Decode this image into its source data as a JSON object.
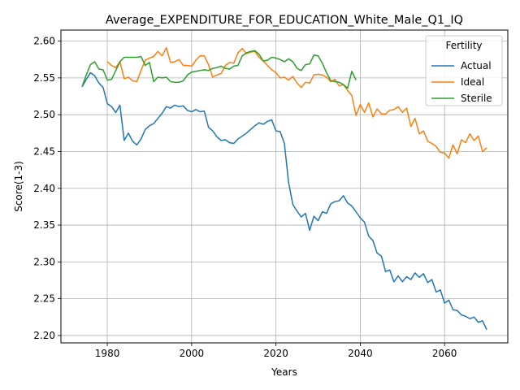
{
  "chart_data": {
    "type": "line",
    "title": "Average_EXPENDITURE_FOR_EDUCATION_White_Male_Q1_IQ",
    "xlabel": "Years",
    "ylabel": "Score(1-3)",
    "xlim": [
      1969,
      2075
    ],
    "ylim": [
      2.19,
      2.615
    ],
    "xticks": [
      1980,
      2000,
      2020,
      2040,
      2060
    ],
    "yticks": [
      2.2,
      2.25,
      2.3,
      2.35,
      2.4,
      2.45,
      2.5,
      2.55,
      2.6
    ],
    "xtick_labels": [
      "1980",
      "2000",
      "2020",
      "2040",
      "2060"
    ],
    "ytick_labels": [
      "2.20",
      "2.25",
      "2.30",
      "2.35",
      "2.40",
      "2.45",
      "2.50",
      "2.55",
      "2.60"
    ],
    "grid": true,
    "legend": {
      "title": "Fertility",
      "position": "top-right"
    },
    "series": [
      {
        "name": "Actual",
        "color": "#1f77b4",
        "points": [
          [
            1974,
            2.538
          ],
          [
            1975,
            2.548
          ],
          [
            1976,
            2.557
          ],
          [
            1977,
            2.553
          ],
          [
            1978,
            2.543
          ],
          [
            1979,
            2.537
          ],
          [
            1980,
            2.515
          ],
          [
            1981,
            2.511
          ],
          [
            1982,
            2.503
          ],
          [
            1983,
            2.513
          ],
          [
            1984,
            2.465
          ],
          [
            1985,
            2.475
          ],
          [
            1986,
            2.464
          ],
          [
            1987,
            2.459
          ],
          [
            1988,
            2.467
          ],
          [
            1989,
            2.48
          ],
          [
            1990,
            2.485
          ],
          [
            1991,
            2.488
          ],
          [
            1992,
            2.495
          ],
          [
            1993,
            2.502
          ],
          [
            1994,
            2.511
          ],
          [
            1995,
            2.509
          ],
          [
            1996,
            2.513
          ],
          [
            1997,
            2.511
          ],
          [
            1998,
            2.512
          ],
          [
            1999,
            2.506
          ],
          [
            2000,
            2.504
          ],
          [
            2001,
            2.507
          ],
          [
            2002,
            2.504
          ],
          [
            2003,
            2.505
          ],
          [
            2004,
            2.483
          ],
          [
            2005,
            2.478
          ],
          [
            2006,
            2.47
          ],
          [
            2007,
            2.465
          ],
          [
            2008,
            2.466
          ],
          [
            2009,
            2.462
          ],
          [
            2010,
            2.461
          ],
          [
            2011,
            2.467
          ],
          [
            2012,
            2.471
          ],
          [
            2013,
            2.475
          ],
          [
            2014,
            2.48
          ],
          [
            2015,
            2.485
          ],
          [
            2016,
            2.489
          ],
          [
            2017,
            2.487
          ],
          [
            2018,
            2.491
          ],
          [
            2019,
            2.493
          ],
          [
            2020,
            2.478
          ],
          [
            2021,
            2.477
          ],
          [
            2022,
            2.461
          ],
          [
            2023,
            2.408
          ],
          [
            2024,
            2.378
          ],
          [
            2025,
            2.369
          ],
          [
            2026,
            2.361
          ],
          [
            2027,
            2.366
          ],
          [
            2028,
            2.343
          ],
          [
            2029,
            2.362
          ],
          [
            2030,
            2.356
          ],
          [
            2031,
            2.368
          ],
          [
            2032,
            2.366
          ],
          [
            2033,
            2.379
          ],
          [
            2034,
            2.382
          ],
          [
            2035,
            2.383
          ],
          [
            2036,
            2.39
          ],
          [
            2037,
            2.38
          ],
          [
            2038,
            2.376
          ],
          [
            2039,
            2.368
          ],
          [
            2040,
            2.36
          ],
          [
            2041,
            2.354
          ],
          [
            2042,
            2.335
          ],
          [
            2043,
            2.329
          ],
          [
            2044,
            2.312
          ],
          [
            2045,
            2.308
          ],
          [
            2046,
            2.287
          ],
          [
            2047,
            2.289
          ],
          [
            2048,
            2.273
          ],
          [
            2049,
            2.281
          ],
          [
            2050,
            2.273
          ],
          [
            2051,
            2.28
          ],
          [
            2052,
            2.276
          ],
          [
            2053,
            2.285
          ],
          [
            2054,
            2.279
          ],
          [
            2055,
            2.284
          ],
          [
            2056,
            2.272
          ],
          [
            2057,
            2.276
          ],
          [
            2058,
            2.259
          ],
          [
            2059,
            2.262
          ],
          [
            2060,
            2.244
          ],
          [
            2061,
            2.248
          ],
          [
            2062,
            2.235
          ],
          [
            2063,
            2.234
          ],
          [
            2064,
            2.228
          ],
          [
            2065,
            2.226
          ],
          [
            2066,
            2.223
          ],
          [
            2067,
            2.225
          ],
          [
            2068,
            2.218
          ],
          [
            2069,
            2.22
          ],
          [
            2070,
            2.208
          ]
        ]
      },
      {
        "name": "Ideal",
        "color": "#ff7f0e",
        "points": [
          [
            1980,
            2.572
          ],
          [
            1981,
            2.567
          ],
          [
            1982,
            2.564
          ],
          [
            1983,
            2.572
          ],
          [
            1984,
            2.549
          ],
          [
            1985,
            2.551
          ],
          [
            1986,
            2.546
          ],
          [
            1987,
            2.545
          ],
          [
            1988,
            2.56
          ],
          [
            1989,
            2.574
          ],
          [
            1990,
            2.577
          ],
          [
            1991,
            2.579
          ],
          [
            1992,
            2.586
          ],
          [
            1993,
            2.58
          ],
          [
            1994,
            2.591
          ],
          [
            1995,
            2.571
          ],
          [
            1996,
            2.572
          ],
          [
            1997,
            2.575
          ],
          [
            1998,
            2.567
          ],
          [
            1999,
            2.567
          ],
          [
            2000,
            2.566
          ],
          [
            2001,
            2.574
          ],
          [
            2002,
            2.58
          ],
          [
            2003,
            2.58
          ],
          [
            2004,
            2.568
          ],
          [
            2005,
            2.551
          ],
          [
            2006,
            2.554
          ],
          [
            2007,
            2.556
          ],
          [
            2008,
            2.567
          ],
          [
            2009,
            2.571
          ],
          [
            2010,
            2.57
          ],
          [
            2011,
            2.584
          ],
          [
            2012,
            2.59
          ],
          [
            2013,
            2.583
          ],
          [
            2014,
            2.585
          ],
          [
            2015,
            2.586
          ],
          [
            2016,
            2.578
          ],
          [
            2017,
            2.573
          ],
          [
            2018,
            2.567
          ],
          [
            2019,
            2.561
          ],
          [
            2020,
            2.557
          ],
          [
            2021,
            2.55
          ],
          [
            2022,
            2.551
          ],
          [
            2023,
            2.547
          ],
          [
            2024,
            2.552
          ],
          [
            2025,
            2.543
          ],
          [
            2026,
            2.537
          ],
          [
            2027,
            2.544
          ],
          [
            2028,
            2.543
          ],
          [
            2029,
            2.554
          ],
          [
            2030,
            2.555
          ],
          [
            2031,
            2.554
          ],
          [
            2032,
            2.551
          ],
          [
            2033,
            2.545
          ],
          [
            2034,
            2.548
          ],
          [
            2035,
            2.539
          ],
          [
            2036,
            2.541
          ],
          [
            2037,
            2.533
          ],
          [
            2038,
            2.526
          ],
          [
            2039,
            2.499
          ],
          [
            2040,
            2.514
          ],
          [
            2041,
            2.503
          ],
          [
            2042,
            2.516
          ],
          [
            2043,
            2.497
          ],
          [
            2044,
            2.508
          ],
          [
            2045,
            2.501
          ],
          [
            2046,
            2.501
          ],
          [
            2047,
            2.506
          ],
          [
            2048,
            2.507
          ],
          [
            2049,
            2.511
          ],
          [
            2050,
            2.503
          ],
          [
            2051,
            2.509
          ],
          [
            2052,
            2.484
          ],
          [
            2053,
            2.495
          ],
          [
            2054,
            2.474
          ],
          [
            2055,
            2.478
          ],
          [
            2056,
            2.464
          ],
          [
            2057,
            2.461
          ],
          [
            2058,
            2.457
          ],
          [
            2059,
            2.449
          ],
          [
            2060,
            2.448
          ],
          [
            2061,
            2.441
          ],
          [
            2062,
            2.459
          ],
          [
            2063,
            2.447
          ],
          [
            2064,
            2.466
          ],
          [
            2065,
            2.462
          ],
          [
            2066,
            2.474
          ],
          [
            2067,
            2.465
          ],
          [
            2068,
            2.471
          ],
          [
            2069,
            2.45
          ],
          [
            2070,
            2.455
          ]
        ]
      },
      {
        "name": "Sterile",
        "color": "#2ca02c",
        "points": [
          [
            1974,
            2.538
          ],
          [
            1975,
            2.554
          ],
          [
            1976,
            2.568
          ],
          [
            1977,
            2.572
          ],
          [
            1978,
            2.562
          ],
          [
            1979,
            2.561
          ],
          [
            1980,
            2.547
          ],
          [
            1981,
            2.548
          ],
          [
            1982,
            2.56
          ],
          [
            1983,
            2.572
          ],
          [
            1984,
            2.578
          ],
          [
            1985,
            2.578
          ],
          [
            1986,
            2.578
          ],
          [
            1987,
            2.578
          ],
          [
            1988,
            2.579
          ],
          [
            1989,
            2.567
          ],
          [
            1990,
            2.571
          ],
          [
            1991,
            2.545
          ],
          [
            1992,
            2.551
          ],
          [
            1993,
            2.55
          ],
          [
            1994,
            2.551
          ],
          [
            1995,
            2.545
          ],
          [
            1996,
            2.544
          ],
          [
            1997,
            2.544
          ],
          [
            1998,
            2.546
          ],
          [
            1999,
            2.554
          ],
          [
            2000,
            2.558
          ],
          [
            2001,
            2.559
          ],
          [
            2002,
            2.56
          ],
          [
            2003,
            2.561
          ],
          [
            2004,
            2.56
          ],
          [
            2005,
            2.563
          ],
          [
            2006,
            2.564
          ],
          [
            2007,
            2.566
          ],
          [
            2008,
            2.563
          ],
          [
            2009,
            2.562
          ],
          [
            2010,
            2.566
          ],
          [
            2011,
            2.567
          ],
          [
            2012,
            2.58
          ],
          [
            2013,
            2.584
          ],
          [
            2014,
            2.586
          ],
          [
            2015,
            2.587
          ],
          [
            2016,
            2.582
          ],
          [
            2017,
            2.573
          ],
          [
            2018,
            2.574
          ],
          [
            2019,
            2.578
          ],
          [
            2020,
            2.577
          ],
          [
            2021,
            2.575
          ],
          [
            2022,
            2.572
          ],
          [
            2023,
            2.576
          ],
          [
            2024,
            2.572
          ],
          [
            2025,
            2.563
          ],
          [
            2026,
            2.56
          ],
          [
            2027,
            2.568
          ],
          [
            2028,
            2.569
          ],
          [
            2029,
            2.581
          ],
          [
            2030,
            2.58
          ],
          [
            2031,
            2.57
          ],
          [
            2032,
            2.557
          ],
          [
            2033,
            2.546
          ],
          [
            2034,
            2.545
          ],
          [
            2035,
            2.544
          ],
          [
            2036,
            2.541
          ],
          [
            2037,
            2.536
          ],
          [
            2038,
            2.559
          ],
          [
            2039,
            2.547
          ]
        ]
      }
    ]
  }
}
